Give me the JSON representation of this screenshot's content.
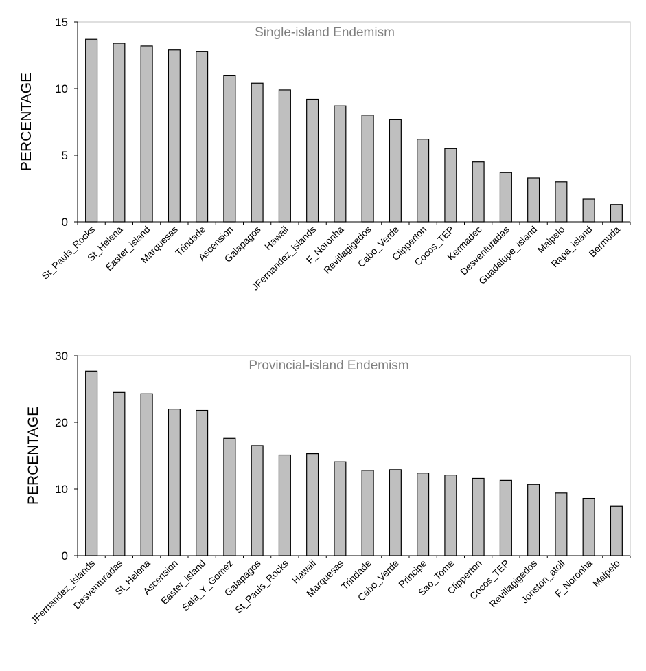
{
  "chart_data": [
    {
      "type": "bar",
      "title": "Single-island Endemism",
      "ylabel": "PERCENTAGE",
      "xlabel": "",
      "ylim": [
        0,
        15
      ],
      "yticks": [
        0,
        5,
        10,
        15
      ],
      "grid": false,
      "bar_color": "#bfbfbf",
      "categories": [
        "St_Pauls_Rocks",
        "St_Helena",
        "Easter_island",
        "Marquesas",
        "Trindade",
        "Ascension",
        "Galapagos",
        "Hawaii",
        "JFernandez_islands",
        "F_Noronha",
        "Revillagigedos",
        "Cabo_Verde",
        "Clipperton",
        "Cocos_TEP",
        "Kermadec",
        "Desventuradas",
        "Guadalupe_island",
        "Malpelo",
        "Rapa_island",
        "Bermuda"
      ],
      "values": [
        13.7,
        13.4,
        13.2,
        12.9,
        12.8,
        11.0,
        10.4,
        9.9,
        9.2,
        8.7,
        8.0,
        7.7,
        6.2,
        5.5,
        4.5,
        3.7,
        3.3,
        3.0,
        1.7,
        1.3
      ]
    },
    {
      "type": "bar",
      "title": "Provincial-island Endemism",
      "ylabel": "PERCENTAGE",
      "xlabel": "",
      "ylim": [
        0,
        30
      ],
      "yticks": [
        0,
        10,
        20,
        30
      ],
      "grid": false,
      "bar_color": "#bfbfbf",
      "categories": [
        "JFernandez_islands",
        "Desventuradas",
        "St_Helena",
        "Ascension",
        "Easter_island",
        "Sala_Y_Gomez",
        "Galapagos",
        "St_Pauls_Rocks",
        "Hawaii",
        "Marquesas",
        "Trindade",
        "Cabo_Verde",
        "Principe",
        "Sao_Tome",
        "Clipperton",
        "Cocos_TEP",
        "Revillagigedos",
        "Jonston_atoll",
        "F_Noronha",
        "Malpelo"
      ],
      "values": [
        27.7,
        24.5,
        24.3,
        22.0,
        21.8,
        17.6,
        16.5,
        15.1,
        15.3,
        14.1,
        12.8,
        12.9,
        12.4,
        12.1,
        11.6,
        11.3,
        10.7,
        9.4,
        8.6,
        7.4
      ]
    }
  ]
}
